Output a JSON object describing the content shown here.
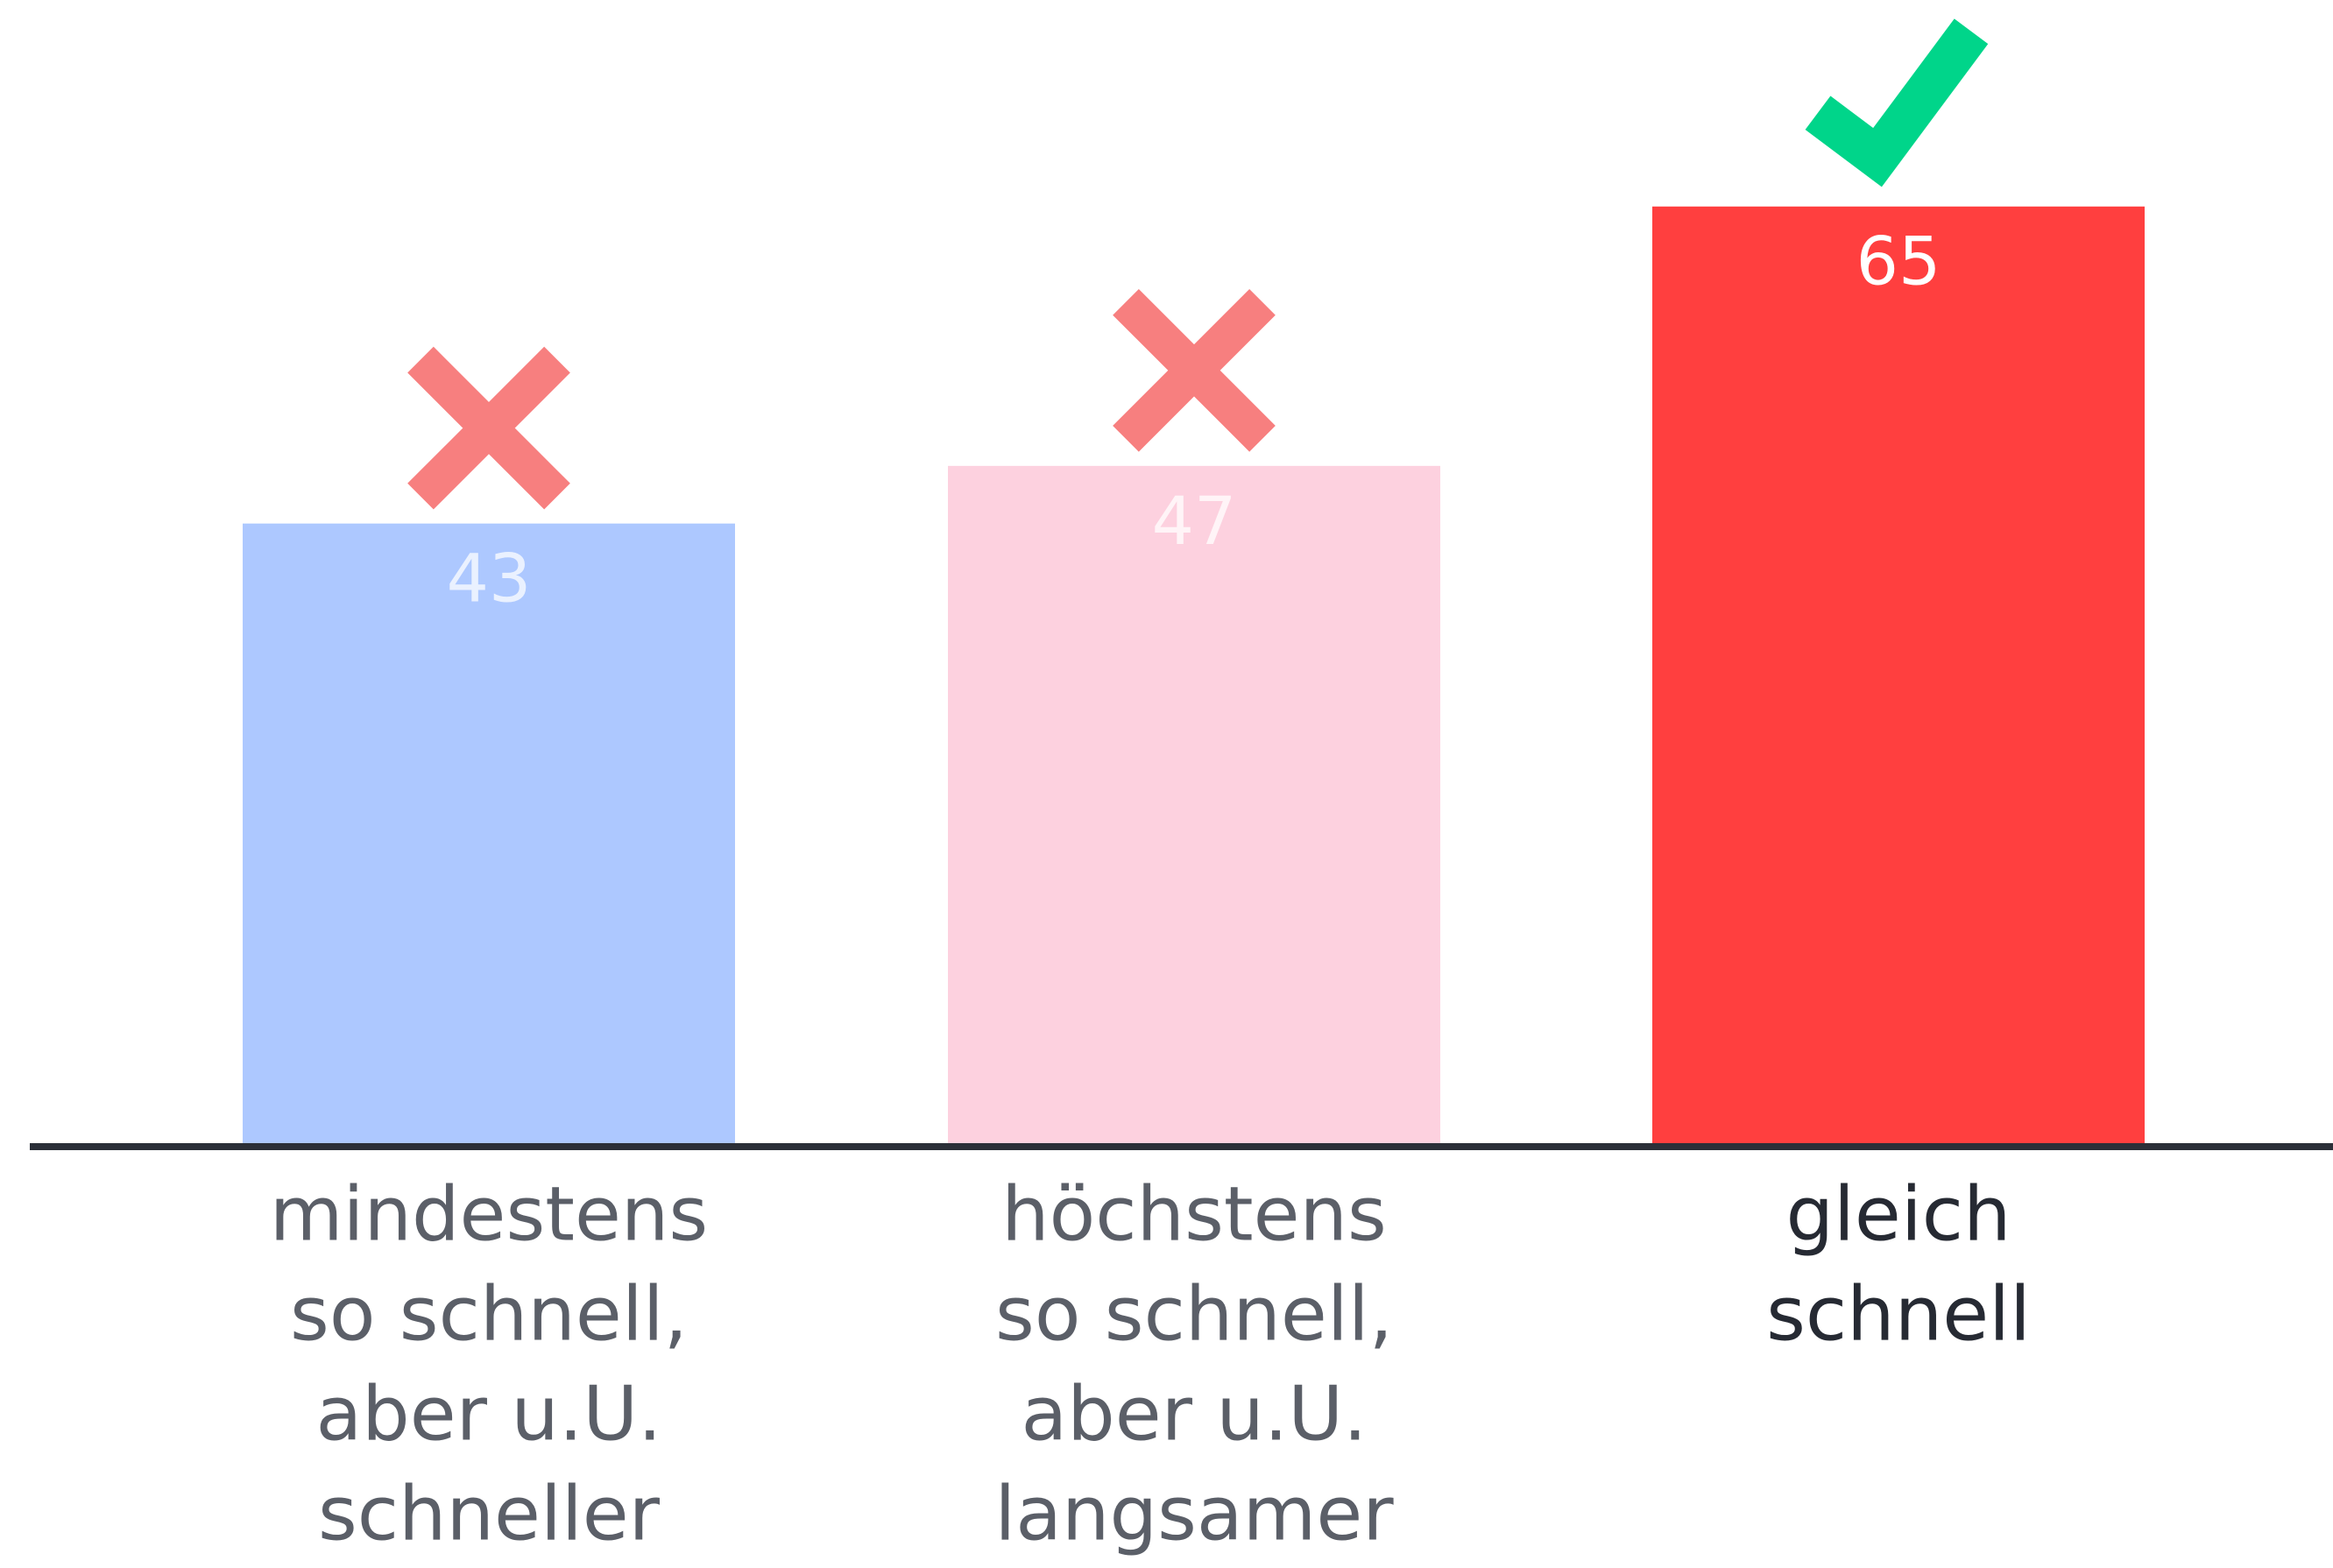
{
  "chart_data": {
    "type": "bar",
    "categories": [
      [
        "mindestens",
        "so schnell,",
        "aber u.U.",
        "schneller"
      ],
      [
        "höchstens",
        "so schnell,",
        "aber u.U.",
        "langsamer"
      ],
      [
        "gleich",
        "schnell"
      ]
    ],
    "values": [
      43,
      47,
      65
    ],
    "colors": [
      "#adc8ff",
      "#fdd1df",
      "#ff3f3f"
    ],
    "label_colors": [
      "#5b5f68",
      "#5b5f68",
      "#262a33"
    ],
    "markers": [
      "cross",
      "cross",
      "check"
    ],
    "ylim": [
      0,
      80
    ]
  }
}
